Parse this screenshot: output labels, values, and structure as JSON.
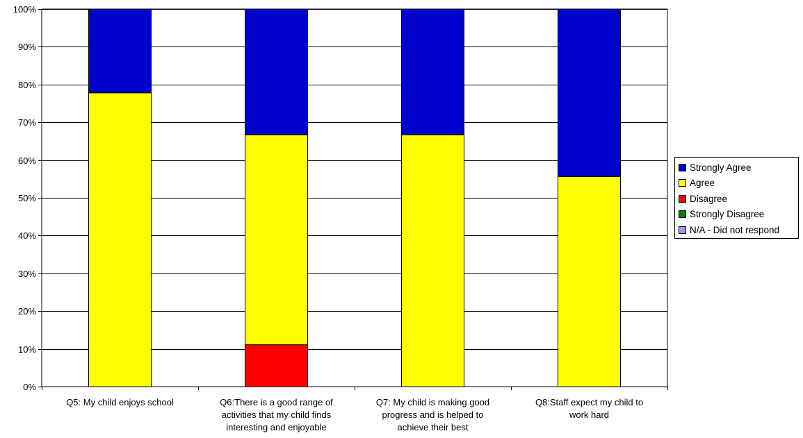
{
  "chart_data": {
    "type": "bar",
    "stacked": true,
    "categories": [
      [
        "Q5: My child enjoys school"
      ],
      [
        "Q6:There is a good range of",
        "activities that my child finds",
        "interesting and enjoyable"
      ],
      [
        "Q7: My child is making good",
        "progress and is helped to",
        "achieve their best"
      ],
      [
        "Q8:Staff expect my child to",
        "work hard"
      ]
    ],
    "series": [
      {
        "name": "N/A - Did not respond",
        "color": "#9999ff",
        "values": [
          0,
          0,
          0,
          0
        ]
      },
      {
        "name": "Strongly Disagree",
        "color": "#008000",
        "values": [
          0,
          0,
          0,
          0
        ]
      },
      {
        "name": "Disagree",
        "color": "#ff0000",
        "values": [
          0,
          11.1,
          0,
          0
        ]
      },
      {
        "name": "Agree",
        "color": "#ffff00",
        "values": [
          77.8,
          55.6,
          66.7,
          55.6
        ]
      },
      {
        "name": "Strongly Agree",
        "color": "#0000cc",
        "values": [
          22.2,
          33.3,
          33.3,
          44.4
        ]
      }
    ],
    "legend_order": [
      "Strongly Agree",
      "Agree",
      "Disagree",
      "Strongly Disagree",
      "N/A - Did not respond"
    ],
    "yticks": [
      "0%",
      "10%",
      "20%",
      "30%",
      "40%",
      "50%",
      "60%",
      "70%",
      "80%",
      "90%",
      "100%"
    ],
    "ylim": [
      0,
      100
    ],
    "grid": true,
    "legend_position": "right"
  }
}
